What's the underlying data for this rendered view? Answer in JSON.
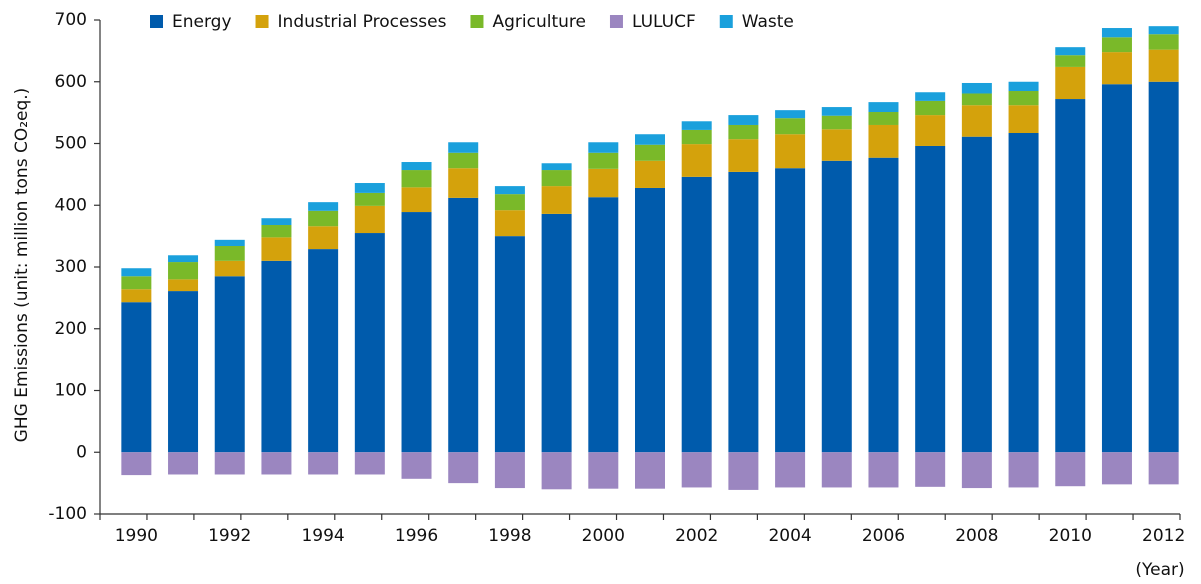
{
  "chart_data": {
    "type": "stacked_bar",
    "y_label": "GHG Emissions (unit: million tons CO₂eq.)",
    "x_label": "(Year)",
    "categories": [
      "1990",
      null,
      "1992",
      null,
      "1994",
      null,
      "1996",
      null,
      "1998",
      null,
      "2000",
      null,
      "2002",
      null,
      "2004",
      null,
      "2006",
      null,
      "2008",
      null,
      "2010",
      null,
      "2012"
    ],
    "series": [
      {
        "name": "Energy",
        "color": "#005bac",
        "values": [
          243,
          261,
          285,
          310,
          329,
          355,
          389,
          412,
          350,
          386,
          413,
          428,
          446,
          454,
          460,
          472,
          477,
          496,
          511,
          517,
          572,
          596,
          600
        ]
      },
      {
        "name": "Industrial Processes",
        "color": "#d4a20c",
        "values": [
          21,
          19,
          25,
          38,
          37,
          44,
          40,
          48,
          42,
          45,
          46,
          44,
          53,
          53,
          55,
          51,
          53,
          50,
          51,
          45,
          52,
          52,
          52
        ]
      },
      {
        "name": "Agriculture",
        "color": "#7ab929",
        "values": [
          21,
          28,
          24,
          20,
          25,
          21,
          28,
          25,
          26,
          26,
          26,
          26,
          23,
          23,
          26,
          22,
          21,
          23,
          19,
          23,
          19,
          24,
          25
        ]
      },
      {
        "name": "LULUCF",
        "color": "#9b86c0",
        "values": [
          -37,
          -36,
          -36,
          -36,
          -36,
          -36,
          -43,
          -50,
          -58,
          -60,
          -59,
          -59,
          -57,
          -61,
          -57,
          -57,
          -57,
          -56,
          -58,
          -57,
          -55,
          -52,
          -52
        ]
      },
      {
        "name": "Waste",
        "color": "#1aa0dc",
        "values": [
          13,
          11,
          10,
          11,
          14,
          16,
          13,
          17,
          13,
          11,
          17,
          17,
          14,
          16,
          13,
          14,
          16,
          14,
          17,
          15,
          13,
          15,
          13
        ]
      }
    ],
    "ylim": [
      -100,
      700
    ],
    "yticks": [
      -100,
      0,
      100,
      200,
      300,
      400,
      500,
      600,
      700
    ],
    "grid": false,
    "legend": "top"
  }
}
